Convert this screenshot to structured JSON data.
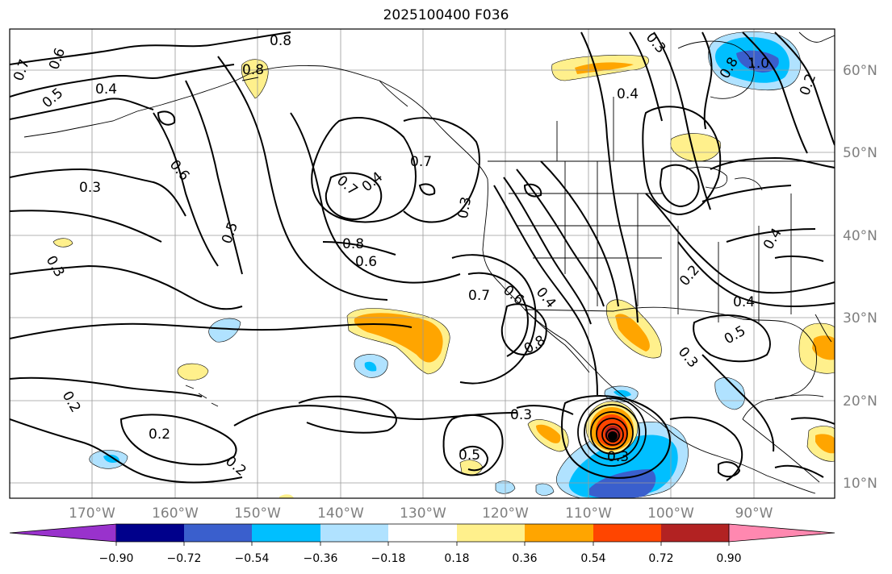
{
  "title": "2025100400 F036",
  "lat_labels": [
    "60°N",
    "50°N",
    "40°N",
    "30°N",
    "20°N",
    "10°N"
  ],
  "lon_labels": [
    "170°W",
    "160°W",
    "150°W",
    "140°W",
    "130°W",
    "120°W",
    "110°W",
    "100°W",
    "90°W"
  ],
  "contour_labels": [
    "0.7",
    "0.6",
    "0.5",
    "0.4",
    "0.8",
    "0.8",
    "0.3",
    "0.6",
    "0.5",
    "0.7",
    "0.4",
    "0.7",
    "0.8",
    "0.6",
    "0.3",
    "0.7",
    "0.6",
    "0.4",
    "0.8",
    "0.3",
    "0.2",
    "0.2",
    "0.2",
    "0.5",
    "0.3",
    "0.3",
    "0.4",
    "0.3",
    "1.0",
    "0.8",
    "0.2",
    "0.4",
    "0.2",
    "0.3",
    "0.5",
    "0.4"
  ],
  "colorbar": {
    "ticks": [
      "−0.90",
      "−0.72",
      "−0.54",
      "−0.36",
      "−0.18",
      "0.18",
      "0.36",
      "0.54",
      "0.72",
      "0.90"
    ],
    "colors": [
      "#9932cc",
      "#00008b",
      "#3a5fcd",
      "#00bfff",
      "#b0e2ff",
      "#ffffff",
      "#fff08c",
      "#ffa500",
      "#ff4500",
      "#b22222",
      "#ff88b0"
    ]
  },
  "fill_colors": {
    "light_yellow": "#fff08c",
    "orange": "#ffa500",
    "red_orange": "#ff4500",
    "dark_red": "#b22222",
    "light_blue": "#b0e2ff",
    "deep_sky_blue": "#00bfff",
    "royal_blue": "#3a5fcd"
  }
}
